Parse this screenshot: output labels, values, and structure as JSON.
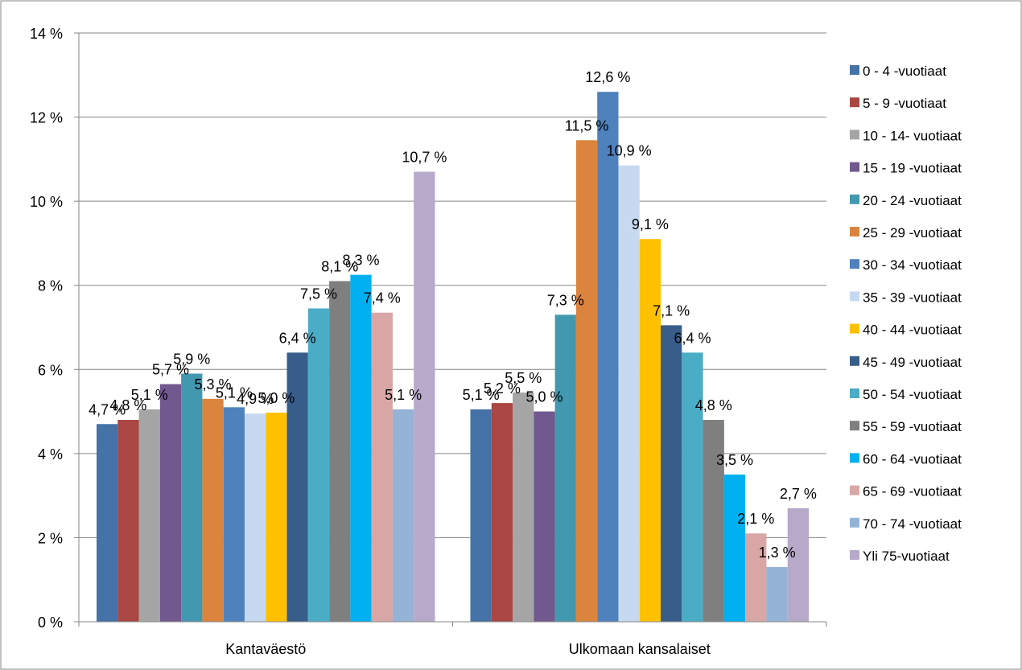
{
  "chart_data": {
    "type": "bar",
    "title": "",
    "xlabel": "",
    "ylabel": "",
    "ylim": [
      0,
      14
    ],
    "y_ticks": [
      "0 %",
      "2 %",
      "4 %",
      "6 %",
      "8 %",
      "10 %",
      "12 %",
      "14 %"
    ],
    "grid": true,
    "legend_position": "right",
    "categories": [
      "Kantaväestö",
      "Ulkomaan kansalaiset"
    ],
    "series": [
      {
        "name": "0 - 4 -vuotiaat",
        "color": "#4572A7",
        "values": [
          4.7,
          5.05
        ],
        "labels": [
          "4,7 %",
          "5,1 %"
        ]
      },
      {
        "name": "5 - 9 -vuotiaat",
        "color": "#AA4643",
        "values": [
          4.8,
          5.2
        ],
        "labels": [
          "4,8 %",
          "5,2 %"
        ]
      },
      {
        "name": "10 - 14- vuotiaat",
        "color": "#A5A5A5",
        "values": [
          5.05,
          5.45
        ],
        "labels": [
          "5,1 %",
          "5,5 %"
        ]
      },
      {
        "name": "15 - 19 -vuotiaat",
        "color": "#71588F",
        "values": [
          5.65,
          5.0
        ],
        "labels": [
          "5,7 %",
          "5,0 %"
        ]
      },
      {
        "name": "20 - 24 -vuotiaat",
        "color": "#4198AF",
        "values": [
          5.9,
          7.3
        ],
        "labels": [
          "5,9 %",
          "7,3 %"
        ]
      },
      {
        "name": "25 - 29 -vuotiaat",
        "color": "#DB843D",
        "values": [
          5.3,
          11.45
        ],
        "labels": [
          "5,3 %",
          "11,5 %"
        ]
      },
      {
        "name": "30 - 34 -vuotiaat",
        "color": "#4F81BD",
        "values": [
          5.1,
          12.6
        ],
        "labels": [
          "5,1 %",
          "12,6 %"
        ]
      },
      {
        "name": "35 - 39 -vuotiaat",
        "color": "#C6D9F0",
        "values": [
          4.95,
          10.85
        ],
        "labels": [
          "4,9 %",
          "10,9 %"
        ]
      },
      {
        "name": "40 - 44 -vuotiaat",
        "color": "#FFC000",
        "values": [
          4.97,
          9.1
        ],
        "labels": [
          "5,0 %",
          "9,1 %"
        ]
      },
      {
        "name": "45 - 49 -vuotiaat",
        "color": "#385D8A",
        "values": [
          6.4,
          7.05
        ],
        "labels": [
          "6,4 %",
          "7,1 %"
        ]
      },
      {
        "name": "50 - 54 -vuotiaat",
        "color": "#4BACC6",
        "values": [
          7.45,
          6.4
        ],
        "labels": [
          "7,5 %",
          "6,4 %"
        ]
      },
      {
        "name": "55 - 59 -vuotiaat",
        "color": "#7F7F7F",
        "values": [
          8.1,
          4.8
        ],
        "labels": [
          "8,1 %",
          "4,8 %"
        ]
      },
      {
        "name": "60 - 64 -vuotiaat",
        "color": "#00B0F0",
        "values": [
          8.25,
          3.5
        ],
        "labels": [
          "8,3 %",
          "3,5 %"
        ]
      },
      {
        "name": "65 - 69 -vuotiaat",
        "color": "#D9A6A6",
        "values": [
          7.35,
          2.1
        ],
        "labels": [
          "7,4 %",
          "2,1 %"
        ]
      },
      {
        "name": "70 - 74 -vuotiaat",
        "color": "#95B3D7",
        "values": [
          5.05,
          1.3
        ],
        "labels": [
          "5,1 %",
          "1,3 %"
        ]
      },
      {
        "name": "Yli 75-vuotiaat",
        "color": "#B7A9C9",
        "values": [
          10.7,
          2.7
        ],
        "labels": [
          "10,7 %",
          "2,7 %"
        ]
      }
    ]
  }
}
